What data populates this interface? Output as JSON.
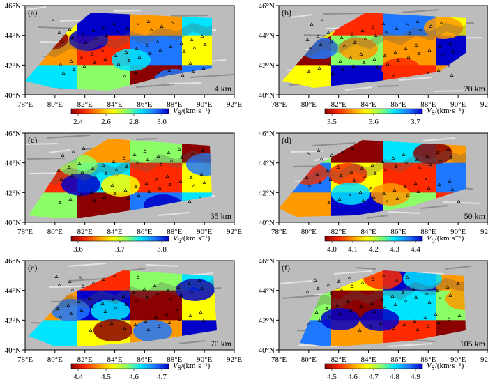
{
  "longitude_ticks": [
    "78°E",
    "80°E",
    "82°E",
    "84°E",
    "86°E",
    "88°E",
    "90°E",
    "92°E"
  ],
  "latitude_ticks": [
    "40°N",
    "42°N",
    "44°N",
    "46°N"
  ],
  "colorbar_unit": "/(km·s⁻¹)",
  "colorbar_symbol": "V",
  "colorbar_subscript": "S",
  "panels": [
    {
      "label": "(a)",
      "depth": "4 km",
      "ticks": [
        "2.4",
        "2.6",
        "2.8",
        "3.0"
      ]
    },
    {
      "label": "(b)",
      "depth": "20 km",
      "ticks": [
        "3.5",
        "3.6",
        "3.7"
      ]
    },
    {
      "label": "(c)",
      "depth": "35 km",
      "ticks": [
        "3.6",
        "3.7",
        "3.8"
      ]
    },
    {
      "label": "(d)",
      "depth": "50 km",
      "ticks": [
        "4.0",
        "4.1",
        "4.2",
        "4.3",
        "4.4"
      ]
    },
    {
      "label": "(e)",
      "depth": "70 km",
      "ticks": [
        "4.4",
        "4.5",
        "4.6",
        "4.7"
      ]
    },
    {
      "label": "(f)",
      "depth": "105 km",
      "ticks": [
        "4.5",
        "4.6",
        "4.7",
        "4.8",
        "4.9"
      ]
    }
  ],
  "colors": {
    "scale": [
      "#8b0000",
      "#ff2a00",
      "#ff9900",
      "#ffff00",
      "#8cff66",
      "#00e5ff",
      "#1e78ff",
      "#0000c8"
    ],
    "relief": "#bcbcbc"
  }
}
